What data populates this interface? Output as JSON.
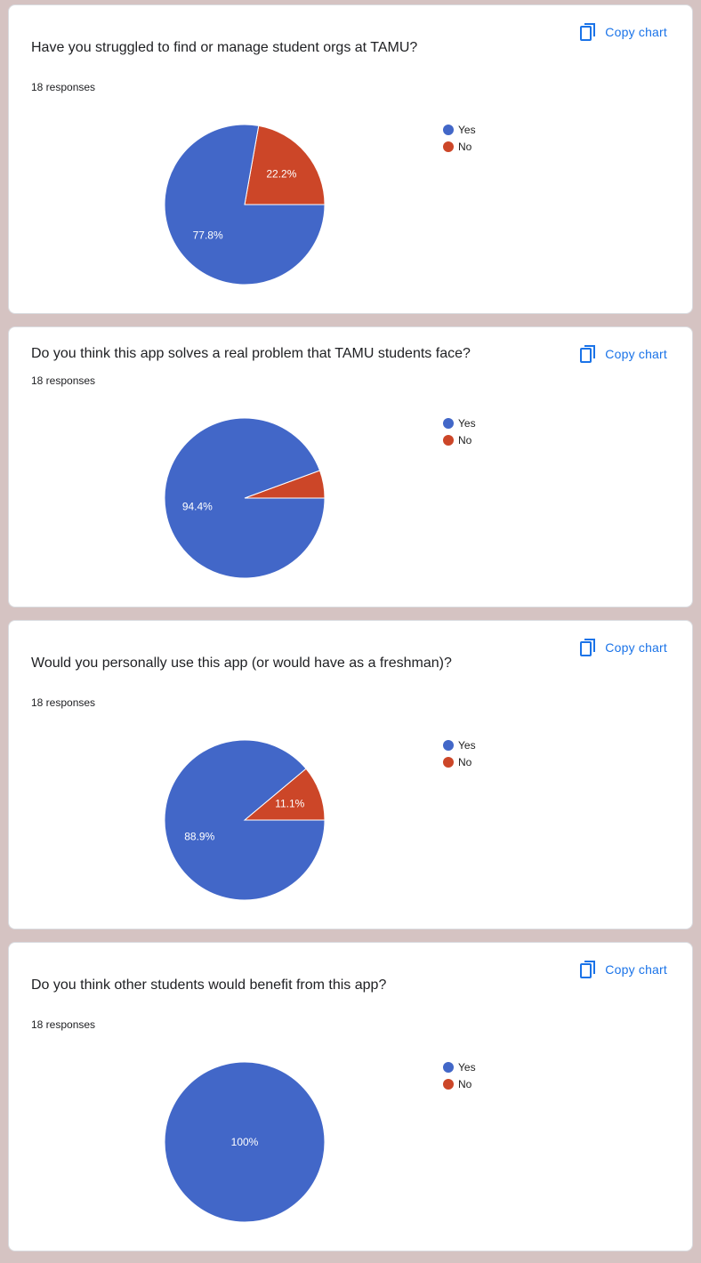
{
  "copy_label": "Copy chart",
  "colors": {
    "yes": "#4267c8",
    "no": "#cc4628"
  },
  "chart_data": [
    {
      "type": "pie",
      "title": "Have you struggled to find or manage student orgs at TAMU?",
      "responses": "18 responses",
      "legend": [
        "Yes",
        "No"
      ],
      "values": [
        77.8,
        22.2
      ],
      "labels": [
        "77.8%",
        "22.2%"
      ]
    },
    {
      "type": "pie",
      "title": "Do you think this app solves a real problem that TAMU students face?",
      "responses": "18 responses",
      "legend": [
        "Yes",
        "No"
      ],
      "values": [
        94.4,
        5.6
      ],
      "labels": [
        "94.4%",
        ""
      ]
    },
    {
      "type": "pie",
      "title": "Would you personally use this app (or would have as a freshman)?",
      "responses": "18 responses",
      "legend": [
        "Yes",
        "No"
      ],
      "values": [
        88.9,
        11.1
      ],
      "labels": [
        "88.9%",
        "11.1%"
      ]
    },
    {
      "type": "pie",
      "title": "Do you think other students would benefit from this app?",
      "responses": "18 responses",
      "legend": [
        "Yes",
        "No"
      ],
      "values": [
        100,
        0
      ],
      "labels": [
        "100%",
        ""
      ]
    }
  ]
}
